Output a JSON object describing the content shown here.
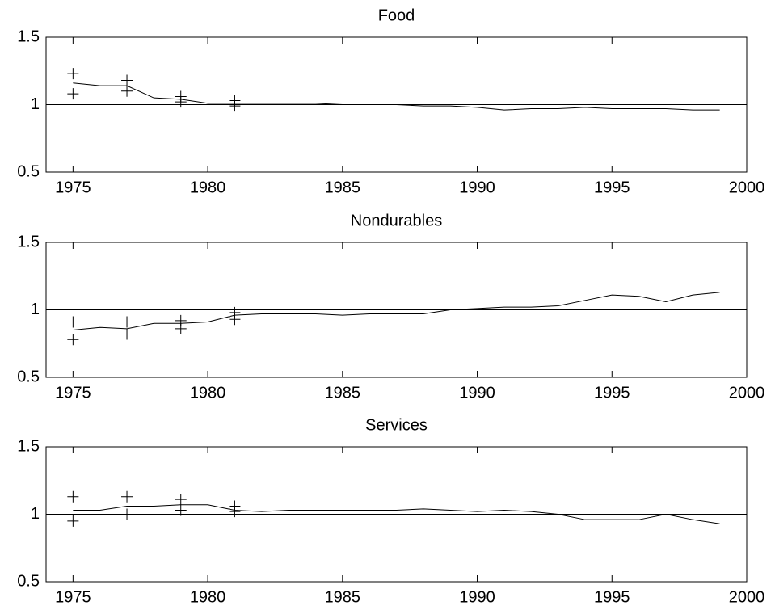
{
  "chart_data": [
    {
      "type": "line",
      "title": "Food",
      "x": [
        1975,
        1976,
        1977,
        1978,
        1979,
        1980,
        1981,
        1982,
        1983,
        1984,
        1985,
        1986,
        1987,
        1988,
        1989,
        1990,
        1991,
        1992,
        1993,
        1994,
        1995,
        1996,
        1997,
        1998,
        1999
      ],
      "values": [
        1.16,
        1.14,
        1.14,
        1.05,
        1.04,
        1.01,
        1.01,
        1.01,
        1.01,
        1.01,
        1.0,
        1.0,
        1.0,
        0.99,
        0.99,
        0.98,
        0.96,
        0.97,
        0.97,
        0.98,
        0.97,
        0.97,
        0.97,
        0.96,
        0.96
      ],
      "markers": {
        "x": [
          1975,
          1977,
          1979,
          1981
        ],
        "upper": [
          1.23,
          1.18,
          1.06,
          1.03
        ],
        "lower": [
          1.08,
          1.1,
          1.02,
          0.99
        ]
      },
      "hline": 1,
      "color": "#000000",
      "xlim": [
        1974,
        2000
      ],
      "xticks": [
        1975,
        1980,
        1985,
        1990,
        1995,
        2000
      ],
      "ylim": [
        0.5,
        1.5
      ],
      "yticks": [
        0.5,
        1,
        1.5
      ]
    },
    {
      "type": "line",
      "title": "Nondurables",
      "x": [
        1975,
        1976,
        1977,
        1978,
        1979,
        1980,
        1981,
        1982,
        1983,
        1984,
        1985,
        1986,
        1987,
        1988,
        1989,
        1990,
        1991,
        1992,
        1993,
        1994,
        1995,
        1996,
        1997,
        1998,
        1999
      ],
      "values": [
        0.85,
        0.87,
        0.86,
        0.9,
        0.9,
        0.91,
        0.96,
        0.97,
        0.97,
        0.97,
        0.96,
        0.97,
        0.97,
        0.97,
        1.0,
        1.01,
        1.02,
        1.02,
        1.03,
        1.07,
        1.11,
        1.1,
        1.06,
        1.11,
        1.13
      ],
      "markers": {
        "x": [
          1975,
          1977,
          1979,
          1981
        ],
        "upper": [
          0.91,
          0.91,
          0.92,
          0.98
        ],
        "lower": [
          0.78,
          0.82,
          0.86,
          0.93
        ]
      },
      "hline": 1,
      "color": "#000000",
      "xlim": [
        1974,
        2000
      ],
      "xticks": [
        1975,
        1980,
        1985,
        1990,
        1995,
        2000
      ],
      "ylim": [
        0.5,
        1.5
      ],
      "yticks": [
        0.5,
        1,
        1.5
      ]
    },
    {
      "type": "line",
      "title": "Services",
      "x": [
        1975,
        1976,
        1977,
        1978,
        1979,
        1980,
        1981,
        1982,
        1983,
        1984,
        1985,
        1986,
        1987,
        1988,
        1989,
        1990,
        1991,
        1992,
        1993,
        1994,
        1995,
        1996,
        1997,
        1998,
        1999
      ],
      "values": [
        1.03,
        1.03,
        1.06,
        1.06,
        1.07,
        1.07,
        1.03,
        1.02,
        1.03,
        1.03,
        1.03,
        1.03,
        1.03,
        1.04,
        1.03,
        1.02,
        1.03,
        1.02,
        1.0,
        0.96,
        0.96,
        0.96,
        1.0,
        0.96,
        0.93
      ],
      "markers": {
        "x": [
          1975,
          1977,
          1979,
          1981
        ],
        "upper": [
          1.13,
          1.13,
          1.11,
          1.06
        ],
        "lower": [
          0.95,
          1.0,
          1.03,
          1.02
        ]
      },
      "hline": 1,
      "color": "#000000",
      "xlim": [
        1974,
        2000
      ],
      "xticks": [
        1975,
        1980,
        1985,
        1990,
        1995,
        2000
      ],
      "ylim": [
        0.5,
        1.5
      ],
      "yticks": [
        0.5,
        1,
        1.5
      ]
    }
  ]
}
